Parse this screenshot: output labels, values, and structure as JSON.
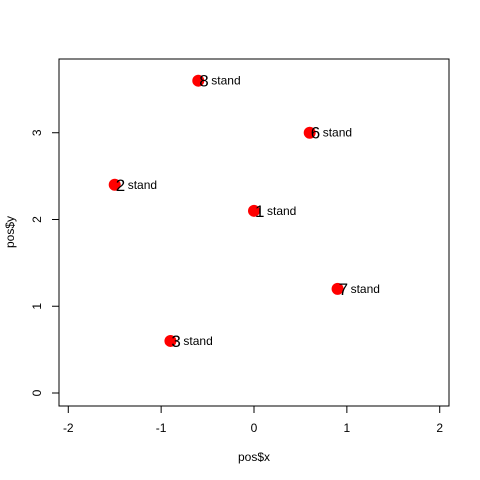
{
  "chart_data": {
    "type": "scatter",
    "title": "",
    "xlabel": "pos$x",
    "ylabel": "pos$y",
    "xlim": [
      -2.1,
      2.1
    ],
    "ylim": [
      -0.15,
      3.85
    ],
    "xticks": [
      -2,
      -1,
      0,
      1,
      2
    ],
    "yticks": [
      0,
      1,
      2,
      3
    ],
    "xtick_labels": [
      "-2",
      "-1",
      "0",
      "1",
      "2"
    ],
    "ytick_labels": [
      "0",
      "1",
      "2",
      "3"
    ],
    "grid": false,
    "point_color": "#ff0000",
    "points": [
      {
        "x": -0.6,
        "y": 3.6,
        "num": "8",
        "label": "stand"
      },
      {
        "x": 0.6,
        "y": 3.0,
        "num": "6",
        "label": "stand"
      },
      {
        "x": -1.5,
        "y": 2.4,
        "num": "2",
        "label": "stand"
      },
      {
        "x": 0.0,
        "y": 2.1,
        "num": "1",
        "label": "stand"
      },
      {
        "x": 0.9,
        "y": 1.2,
        "num": "7",
        "label": "stand"
      },
      {
        "x": -0.9,
        "y": 0.6,
        "num": "3",
        "label": "stand"
      }
    ]
  }
}
